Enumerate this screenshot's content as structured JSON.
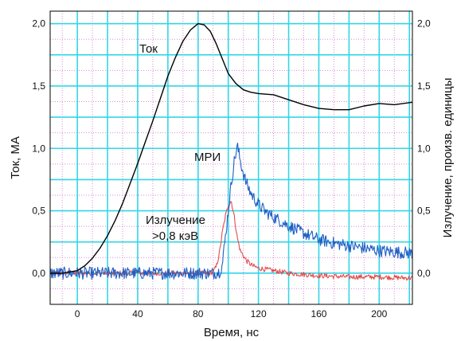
{
  "chart_data": {
    "type": "line",
    "xlabel": "Время, нс",
    "ylabel_left": "Ток, МА",
    "ylabel_right": "Излучение, произв. единицы",
    "xlim": [
      -18,
      222
    ],
    "ylim_left": [
      -0.25,
      2.1
    ],
    "ylim_right": [
      -0.25,
      2.1
    ],
    "xticks": [
      0,
      40,
      80,
      120,
      160,
      200
    ],
    "yticks_left": [
      "0,0",
      "0,5",
      "1,0",
      "1,5",
      "2,0"
    ],
    "yticks_right": [
      "0,0",
      "0,5",
      "1,0",
      "1,5",
      "2,0"
    ],
    "grid": {
      "major_color": "#33d6e6",
      "minor_color": "#d98ad9",
      "major_x": [
        -20,
        0,
        20,
        40,
        60,
        80,
        100,
        120,
        140,
        160,
        180,
        200,
        220
      ],
      "major_y": [
        0,
        0.25,
        0.5,
        0.75,
        1.0,
        1.25,
        1.5,
        1.75,
        2.0
      ],
      "minor_x": [
        -10,
        10,
        30,
        50,
        70,
        90,
        110,
        130,
        150,
        170,
        190,
        210
      ],
      "minor_y": [
        -0.125,
        0.125,
        0.375,
        0.625,
        0.875,
        1.125,
        1.375,
        1.625,
        1.875
      ]
    },
    "annotations": {
      "current": "Ток",
      "mri": "МРИ",
      "radiation_line1": "Излучение",
      "radiation_line2": ">0,8 кэВ"
    },
    "series": [
      {
        "name": "Ток",
        "color": "#000000",
        "x": [
          -18,
          -10,
          0,
          5,
          10,
          15,
          20,
          25,
          30,
          35,
          40,
          45,
          50,
          55,
          60,
          65,
          70,
          75,
          80,
          84,
          88,
          92,
          96,
          100,
          105,
          110,
          115,
          120,
          130,
          140,
          150,
          160,
          170,
          180,
          190,
          200,
          210,
          222
        ],
        "y": [
          0.0,
          0.0,
          0.02,
          0.06,
          0.12,
          0.2,
          0.3,
          0.42,
          0.56,
          0.72,
          0.88,
          1.05,
          1.22,
          1.4,
          1.58,
          1.73,
          1.86,
          1.95,
          2.0,
          1.99,
          1.94,
          1.84,
          1.72,
          1.6,
          1.52,
          1.47,
          1.45,
          1.44,
          1.43,
          1.39,
          1.35,
          1.32,
          1.31,
          1.31,
          1.34,
          1.36,
          1.35,
          1.37
        ]
      },
      {
        "name": "МРИ",
        "color": "#1f5fc4",
        "noise": 0.05,
        "x": [
          -18,
          0,
          40,
          80,
          86,
          90,
          94,
          96,
          98,
          100,
          102,
          104,
          106,
          108,
          110,
          112,
          115,
          120,
          125,
          130,
          140,
          150,
          160,
          170,
          180,
          190,
          200,
          210,
          222
        ],
        "y": [
          0.0,
          0.0,
          0.0,
          0.0,
          0.0,
          0.0,
          0.01,
          0.06,
          0.28,
          0.5,
          0.72,
          0.9,
          1.02,
          0.9,
          0.8,
          0.72,
          0.64,
          0.55,
          0.49,
          0.45,
          0.38,
          0.32,
          0.27,
          0.24,
          0.22,
          0.2,
          0.18,
          0.17,
          0.16
        ]
      },
      {
        "name": "Излучение >0,8 кэВ",
        "color": "#e24d4d",
        "noise": 0.02,
        "x": [
          -18,
          0,
          80,
          86,
          88,
          90,
          92,
          94,
          96,
          98,
          100,
          102,
          104,
          106,
          108,
          112,
          116,
          120,
          130,
          140,
          160,
          180,
          200,
          222
        ],
        "y": [
          0.0,
          0.0,
          0.0,
          0.0,
          0.0,
          0.01,
          0.05,
          0.15,
          0.32,
          0.45,
          0.55,
          0.58,
          0.45,
          0.28,
          0.18,
          0.1,
          0.06,
          0.04,
          0.02,
          0.0,
          -0.02,
          -0.03,
          -0.03,
          -0.04
        ]
      }
    ]
  }
}
